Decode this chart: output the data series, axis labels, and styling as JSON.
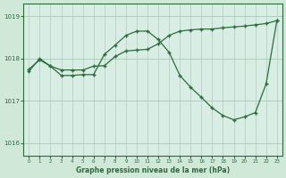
{
  "background_color": "#cfe8d8",
  "plot_bg_color": "#d8ede4",
  "grid_color": "#b0ccbe",
  "line_color": "#2d6b3c",
  "xlabel": "Graphe pression niveau de la mer (hPa)",
  "ylim": [
    1015.7,
    1019.3
  ],
  "xlim": [
    -0.5,
    23.5
  ],
  "yticks": [
    1016,
    1017,
    1018,
    1019
  ],
  "xticks": [
    0,
    1,
    2,
    3,
    4,
    5,
    6,
    7,
    8,
    9,
    10,
    11,
    12,
    13,
    14,
    15,
    16,
    17,
    18,
    19,
    20,
    21,
    22,
    23
  ],
  "series1_x": [
    0,
    1,
    2,
    3,
    4,
    5,
    6,
    7,
    8,
    9,
    10,
    11,
    12,
    13,
    14,
    15,
    16,
    17,
    18,
    19,
    20,
    21,
    22,
    23
  ],
  "series1_y": [
    1017.75,
    1017.97,
    1017.82,
    1017.73,
    1017.73,
    1017.73,
    1017.82,
    1017.83,
    1018.05,
    1018.18,
    1018.2,
    1018.22,
    1018.35,
    1018.55,
    1018.65,
    1018.68,
    1018.7,
    1018.7,
    1018.73,
    1018.75,
    1018.77,
    1018.8,
    1018.83,
    1018.9
  ],
  "series2_x": [
    0,
    1,
    2,
    3,
    4,
    5,
    6,
    7,
    8,
    9,
    10,
    11,
    12,
    13,
    14,
    15,
    16,
    17,
    18,
    19,
    20,
    21,
    22,
    23
  ],
  "series2_y": [
    1017.7,
    1018.0,
    1017.82,
    1017.6,
    1017.6,
    1017.62,
    1017.62,
    1018.1,
    1018.32,
    1018.55,
    1018.65,
    1018.65,
    1018.45,
    1018.15,
    1017.6,
    1017.32,
    1017.08,
    1016.83,
    1016.65,
    1016.55,
    1016.62,
    1016.72,
    1017.4,
    1018.9
  ]
}
